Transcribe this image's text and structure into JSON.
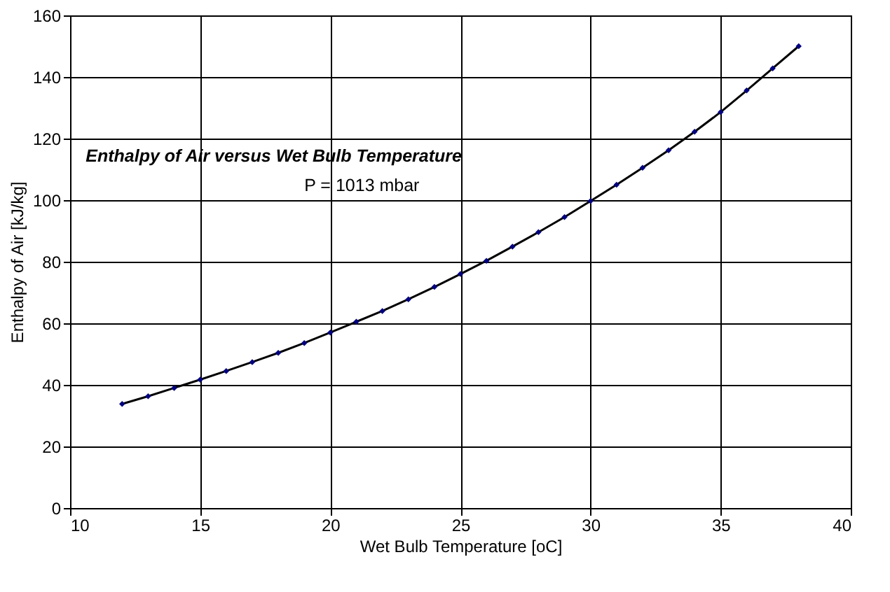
{
  "chart_data": {
    "type": "line",
    "xlabel": "Wet Bulb Temperature [oC]",
    "ylabel": "Enthalpy of Air [kJ/kg]",
    "annotations": [
      "Enthalpy of Air versus Wet Bulb Temperature",
      "P = 1013 mbar"
    ],
    "x": [
      12,
      13,
      14,
      15,
      16,
      17,
      18,
      19,
      20,
      21,
      22,
      23,
      24,
      25,
      26,
      27,
      28,
      29,
      30,
      31,
      32,
      33,
      34,
      35,
      36,
      37,
      38
    ],
    "series": [
      {
        "color": "#000080",
        "values": [
          33.8,
          36.3,
          39,
          41.7,
          44.5,
          47.4,
          50.4,
          53.6,
          57,
          60.5,
          64,
          67.8,
          71.8,
          76,
          80.3,
          84.9,
          89.6,
          94.5,
          99.7,
          105,
          110.5,
          116.2,
          122.2,
          128.6,
          135.6,
          142.8,
          150
        ]
      }
    ],
    "xlim": [
      10,
      40
    ],
    "xticks": [
      10,
      15,
      20,
      25,
      30,
      35,
      40
    ],
    "ylim": [
      0,
      160
    ],
    "yticks": [
      0,
      20,
      40,
      60,
      80,
      100,
      120,
      140,
      160
    ],
    "grid": true,
    "marker": "diamond",
    "line_style": "solid"
  }
}
